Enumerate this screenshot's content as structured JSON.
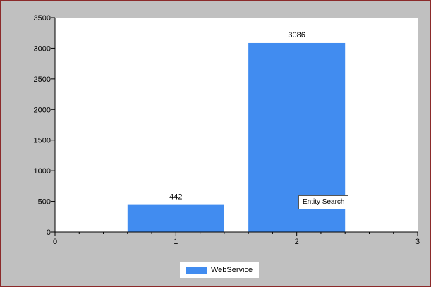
{
  "chart_data": {
    "type": "bar",
    "x": [
      1,
      2
    ],
    "series": [
      {
        "name": "WebService",
        "values": [
          442,
          3086
        ],
        "color": "#418cf0"
      }
    ],
    "data_labels": [
      "442",
      "3086"
    ],
    "xlim": [
      0,
      3
    ],
    "ylim": [
      0,
      3500
    ],
    "x_ticks": [
      "0",
      "1",
      "2",
      "3"
    ],
    "y_ticks": [
      "0",
      "500",
      "1000",
      "1500",
      "2000",
      "2500",
      "3000",
      "3500"
    ],
    "grid": false,
    "legend": "bottom-center",
    "bar_width": 0.8
  },
  "tooltip": {
    "text": "Entity Search"
  },
  "colors": {
    "panel_background": "#c0c0c0",
    "plot_background": "#ffffff",
    "border": "#8b2a2a"
  }
}
